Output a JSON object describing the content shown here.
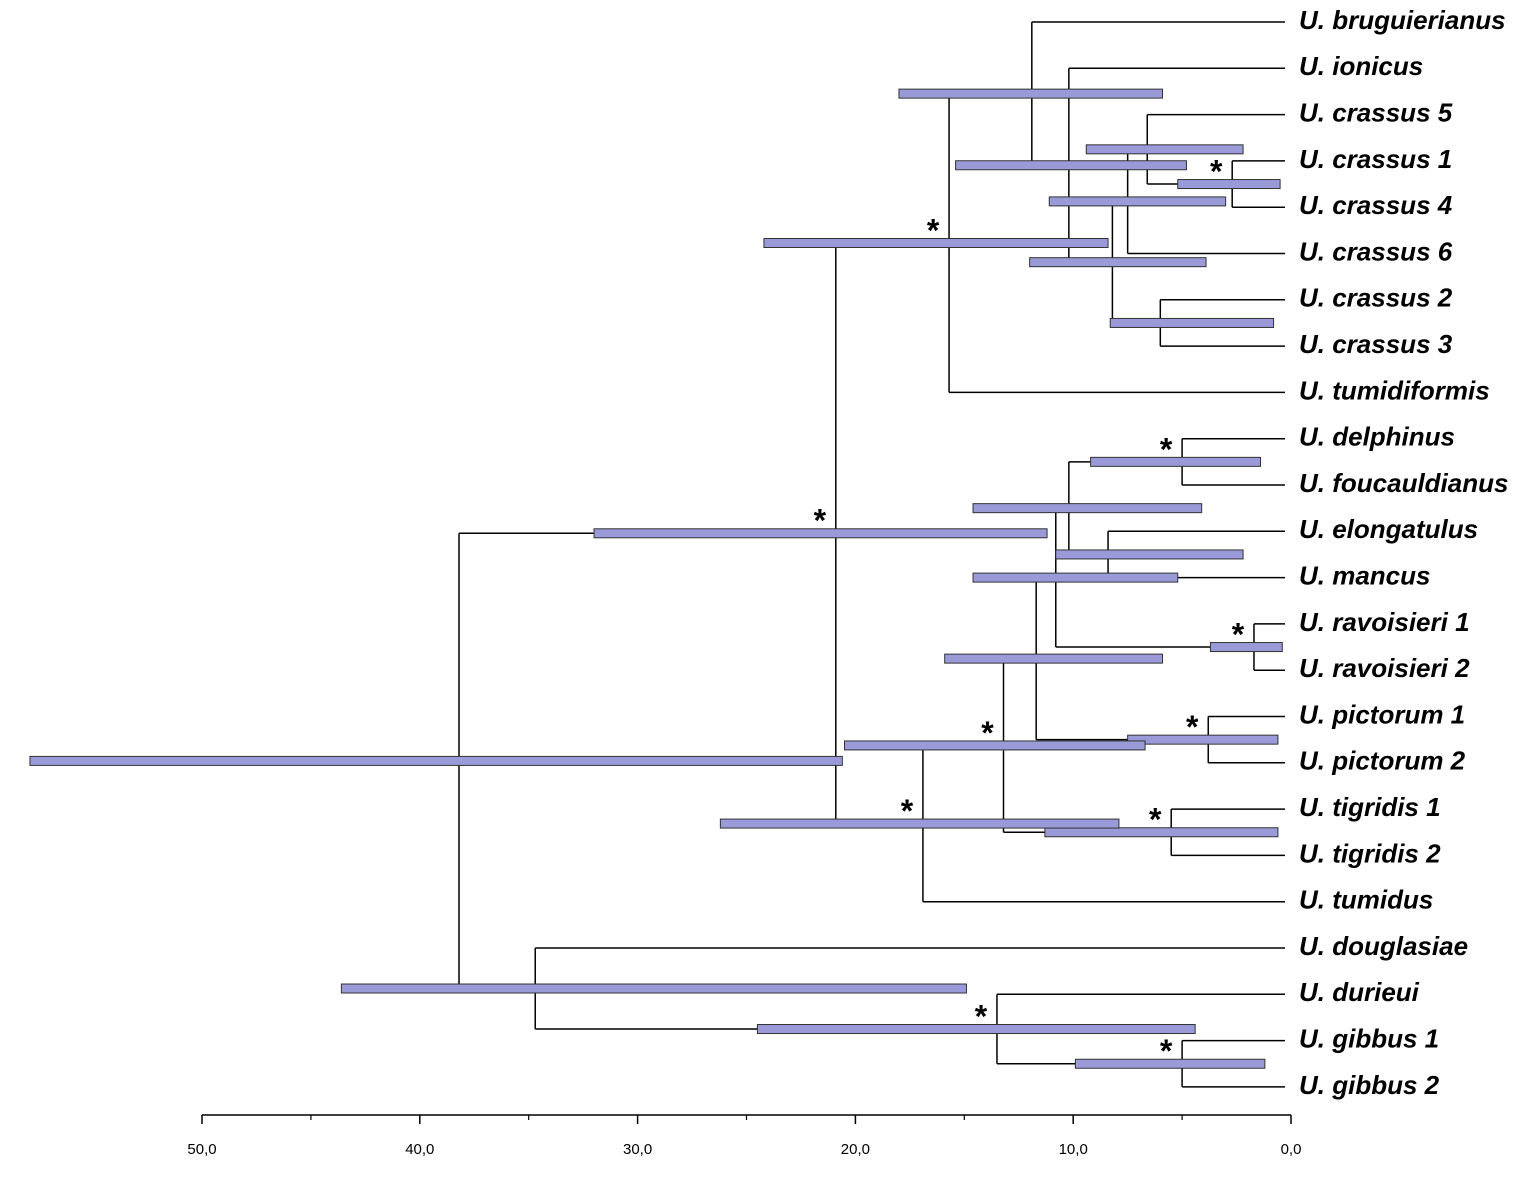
{
  "chart_data": {
    "type": "tree",
    "xlim": [
      50,
      0
    ],
    "xticks": [
      {
        "value": 50,
        "label": "50,0"
      },
      {
        "value": 40,
        "label": "40,0"
      },
      {
        "value": 30,
        "label": "30,0"
      },
      {
        "value": 20,
        "label": "20,0"
      },
      {
        "value": 10,
        "label": "10,0"
      },
      {
        "value": 0,
        "label": "0,0"
      }
    ],
    "xminorticks": [
      45,
      35,
      25,
      15,
      5
    ],
    "bar_color": "#9a9ad8",
    "line_color": "#000000",
    "tree": {
      "age": 38.2,
      "hpd": [
        57.9,
        20.6
      ],
      "children": [
        {
          "age": 20.9,
          "hpd": [
            32.0,
            11.2
          ],
          "support": "*",
          "children": [
            {
              "age": 15.7,
              "hpd": [
                24.2,
                8.4
              ],
              "support": "*",
              "children": [
                {
                  "age": 11.9,
                  "hpd": [
                    18.0,
                    5.9
                  ],
                  "children": [
                    {
                      "label": "U. bruguierianus"
                    },
                    {
                      "age": 10.2,
                      "hpd": [
                        15.4,
                        4.8
                      ],
                      "children": [
                        {
                          "label": "U. ionicus"
                        },
                        {
                          "age": 8.2,
                          "hpd": [
                            12.0,
                            3.9
                          ],
                          "children": [
                            {
                              "age": 7.5,
                              "hpd": [
                                11.1,
                                3.0
                              ],
                              "children": [
                                {
                                  "age": 6.6,
                                  "hpd": [
                                    9.4,
                                    2.2
                                  ],
                                  "children": [
                                    {
                                      "label": "U. crassus 5"
                                    },
                                    {
                                      "age": 2.7,
                                      "hpd": [
                                        5.2,
                                        0.5
                                      ],
                                      "support": "*",
                                      "children": [
                                        {
                                          "label": "U. crassus 1"
                                        },
                                        {
                                          "label": "U. crassus 4"
                                        }
                                      ]
                                    }
                                  ]
                                },
                                {
                                  "label": "U. crassus 6"
                                }
                              ]
                            },
                            {
                              "age": 6.0,
                              "hpd": [
                                8.3,
                                0.8
                              ],
                              "children": [
                                {
                                  "label": "U. crassus 2"
                                },
                                {
                                  "label": "U. crassus 3"
                                }
                              ]
                            }
                          ]
                        }
                      ]
                    }
                  ]
                },
                {
                  "label": "U. tumidiformis"
                }
              ]
            },
            {
              "age": 16.9,
              "hpd": [
                26.2,
                7.9
              ],
              "support": "*",
              "children": [
                {
                  "age": 13.2,
                  "hpd": [
                    20.5,
                    6.7
                  ],
                  "support": "*",
                  "children": [
                    {
                      "age": 11.7,
                      "hpd": [
                        15.9,
                        5.9
                      ],
                      "children": [
                        {
                          "age": 10.8,
                          "hpd": [
                            14.6,
                            5.2
                          ],
                          "children": [
                            {
                              "age": 10.2,
                              "hpd": [
                                14.6,
                                4.1
                              ],
                              "children": [
                                {
                                  "age": 5.0,
                                  "hpd": [
                                    9.2,
                                    1.4
                                  ],
                                  "support": "*",
                                  "children": [
                                    {
                                      "label": "U. delphinus"
                                    },
                                    {
                                      "label": "U. foucauldianus"
                                    }
                                  ]
                                },
                                {
                                  "age": 8.4,
                                  "hpd": [
                                    10.8,
                                    2.2
                                  ],
                                  "children": [
                                    {
                                      "label": "U. elongatulus"
                                    },
                                    {
                                      "label": "U. mancus"
                                    }
                                  ]
                                }
                              ]
                            },
                            {
                              "age": 1.7,
                              "hpd": [
                                3.7,
                                0.4
                              ],
                              "support": "*",
                              "children": [
                                {
                                  "label": "U. ravoisieri 1"
                                },
                                {
                                  "label": "U. ravoisieri 2"
                                }
                              ]
                            }
                          ]
                        },
                        {
                          "age": 3.8,
                          "hpd": [
                            7.5,
                            0.6
                          ],
                          "support": "*",
                          "children": [
                            {
                              "label": "U. pictorum 1"
                            },
                            {
                              "label": "U. pictorum 2"
                            }
                          ]
                        }
                      ]
                    },
                    {
                      "age": 5.5,
                      "hpd": [
                        11.3,
                        0.6
                      ],
                      "support": "*",
                      "children": [
                        {
                          "label": "U. tigridis 1"
                        },
                        {
                          "label": "U. tigridis 2"
                        }
                      ]
                    }
                  ]
                },
                {
                  "label": "U. tumidus"
                }
              ]
            }
          ]
        },
        {
          "age": 34.7,
          "hpd": [
            43.6,
            14.9
          ],
          "children": [
            {
              "label": "U. douglasiae"
            },
            {
              "age": 13.5,
              "hpd": [
                24.5,
                4.4
              ],
              "support": "*",
              "children": [
                {
                  "label": "U. durieui"
                },
                {
                  "age": 5.0,
                  "hpd": [
                    9.9,
                    1.2
                  ],
                  "support": "*",
                  "children": [
                    {
                      "label": "U. gibbus 1"
                    },
                    {
                      "label": "U. gibbus 2"
                    }
                  ]
                }
              ]
            }
          ]
        }
      ]
    }
  }
}
